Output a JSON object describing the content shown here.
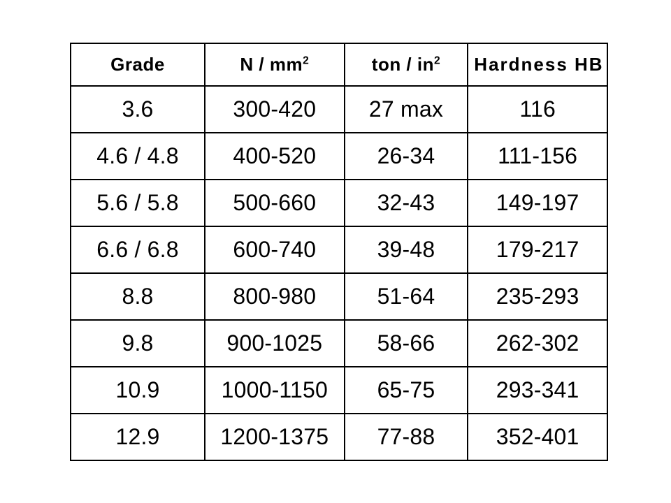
{
  "table": {
    "type": "table",
    "background_color": "#ffffff",
    "border_color": "#000000",
    "header_fontsize": 26,
    "header_fontweight": 700,
    "body_fontsize": 32,
    "body_fontweight": 400,
    "text_color": "#000000",
    "column_widths_pct": [
      25,
      26,
      23,
      26
    ],
    "columns": {
      "grade": "Grade",
      "nmm2_prefix": "N / mm",
      "nmm2_sup": "2",
      "tonin2_prefix": "ton / in",
      "tonin2_sup": "2",
      "hardness": "Hardness  HB"
    },
    "rows": [
      {
        "grade": "3.6",
        "nmm2": "300-420",
        "tonin2": "27 max",
        "hb": "116"
      },
      {
        "grade": "4.6 / 4.8",
        "nmm2": "400-520",
        "tonin2": "26-34",
        "hb": "111-156"
      },
      {
        "grade": "5.6 / 5.8",
        "nmm2": "500-660",
        "tonin2": "32-43",
        "hb": "149-197"
      },
      {
        "grade": "6.6 / 6.8",
        "nmm2": "600-740",
        "tonin2": "39-48",
        "hb": "179-217"
      },
      {
        "grade": "8.8",
        "nmm2": "800-980",
        "tonin2": "51-64",
        "hb": "235-293"
      },
      {
        "grade": "9.8",
        "nmm2": "900-1025",
        "tonin2": "58-66",
        "hb": "262-302"
      },
      {
        "grade": "10.9",
        "nmm2": "1000-1150",
        "tonin2": "65-75",
        "hb": "293-341"
      },
      {
        "grade": "12.9",
        "nmm2": "1200-1375",
        "tonin2": "77-88",
        "hb": "352-401"
      }
    ]
  }
}
